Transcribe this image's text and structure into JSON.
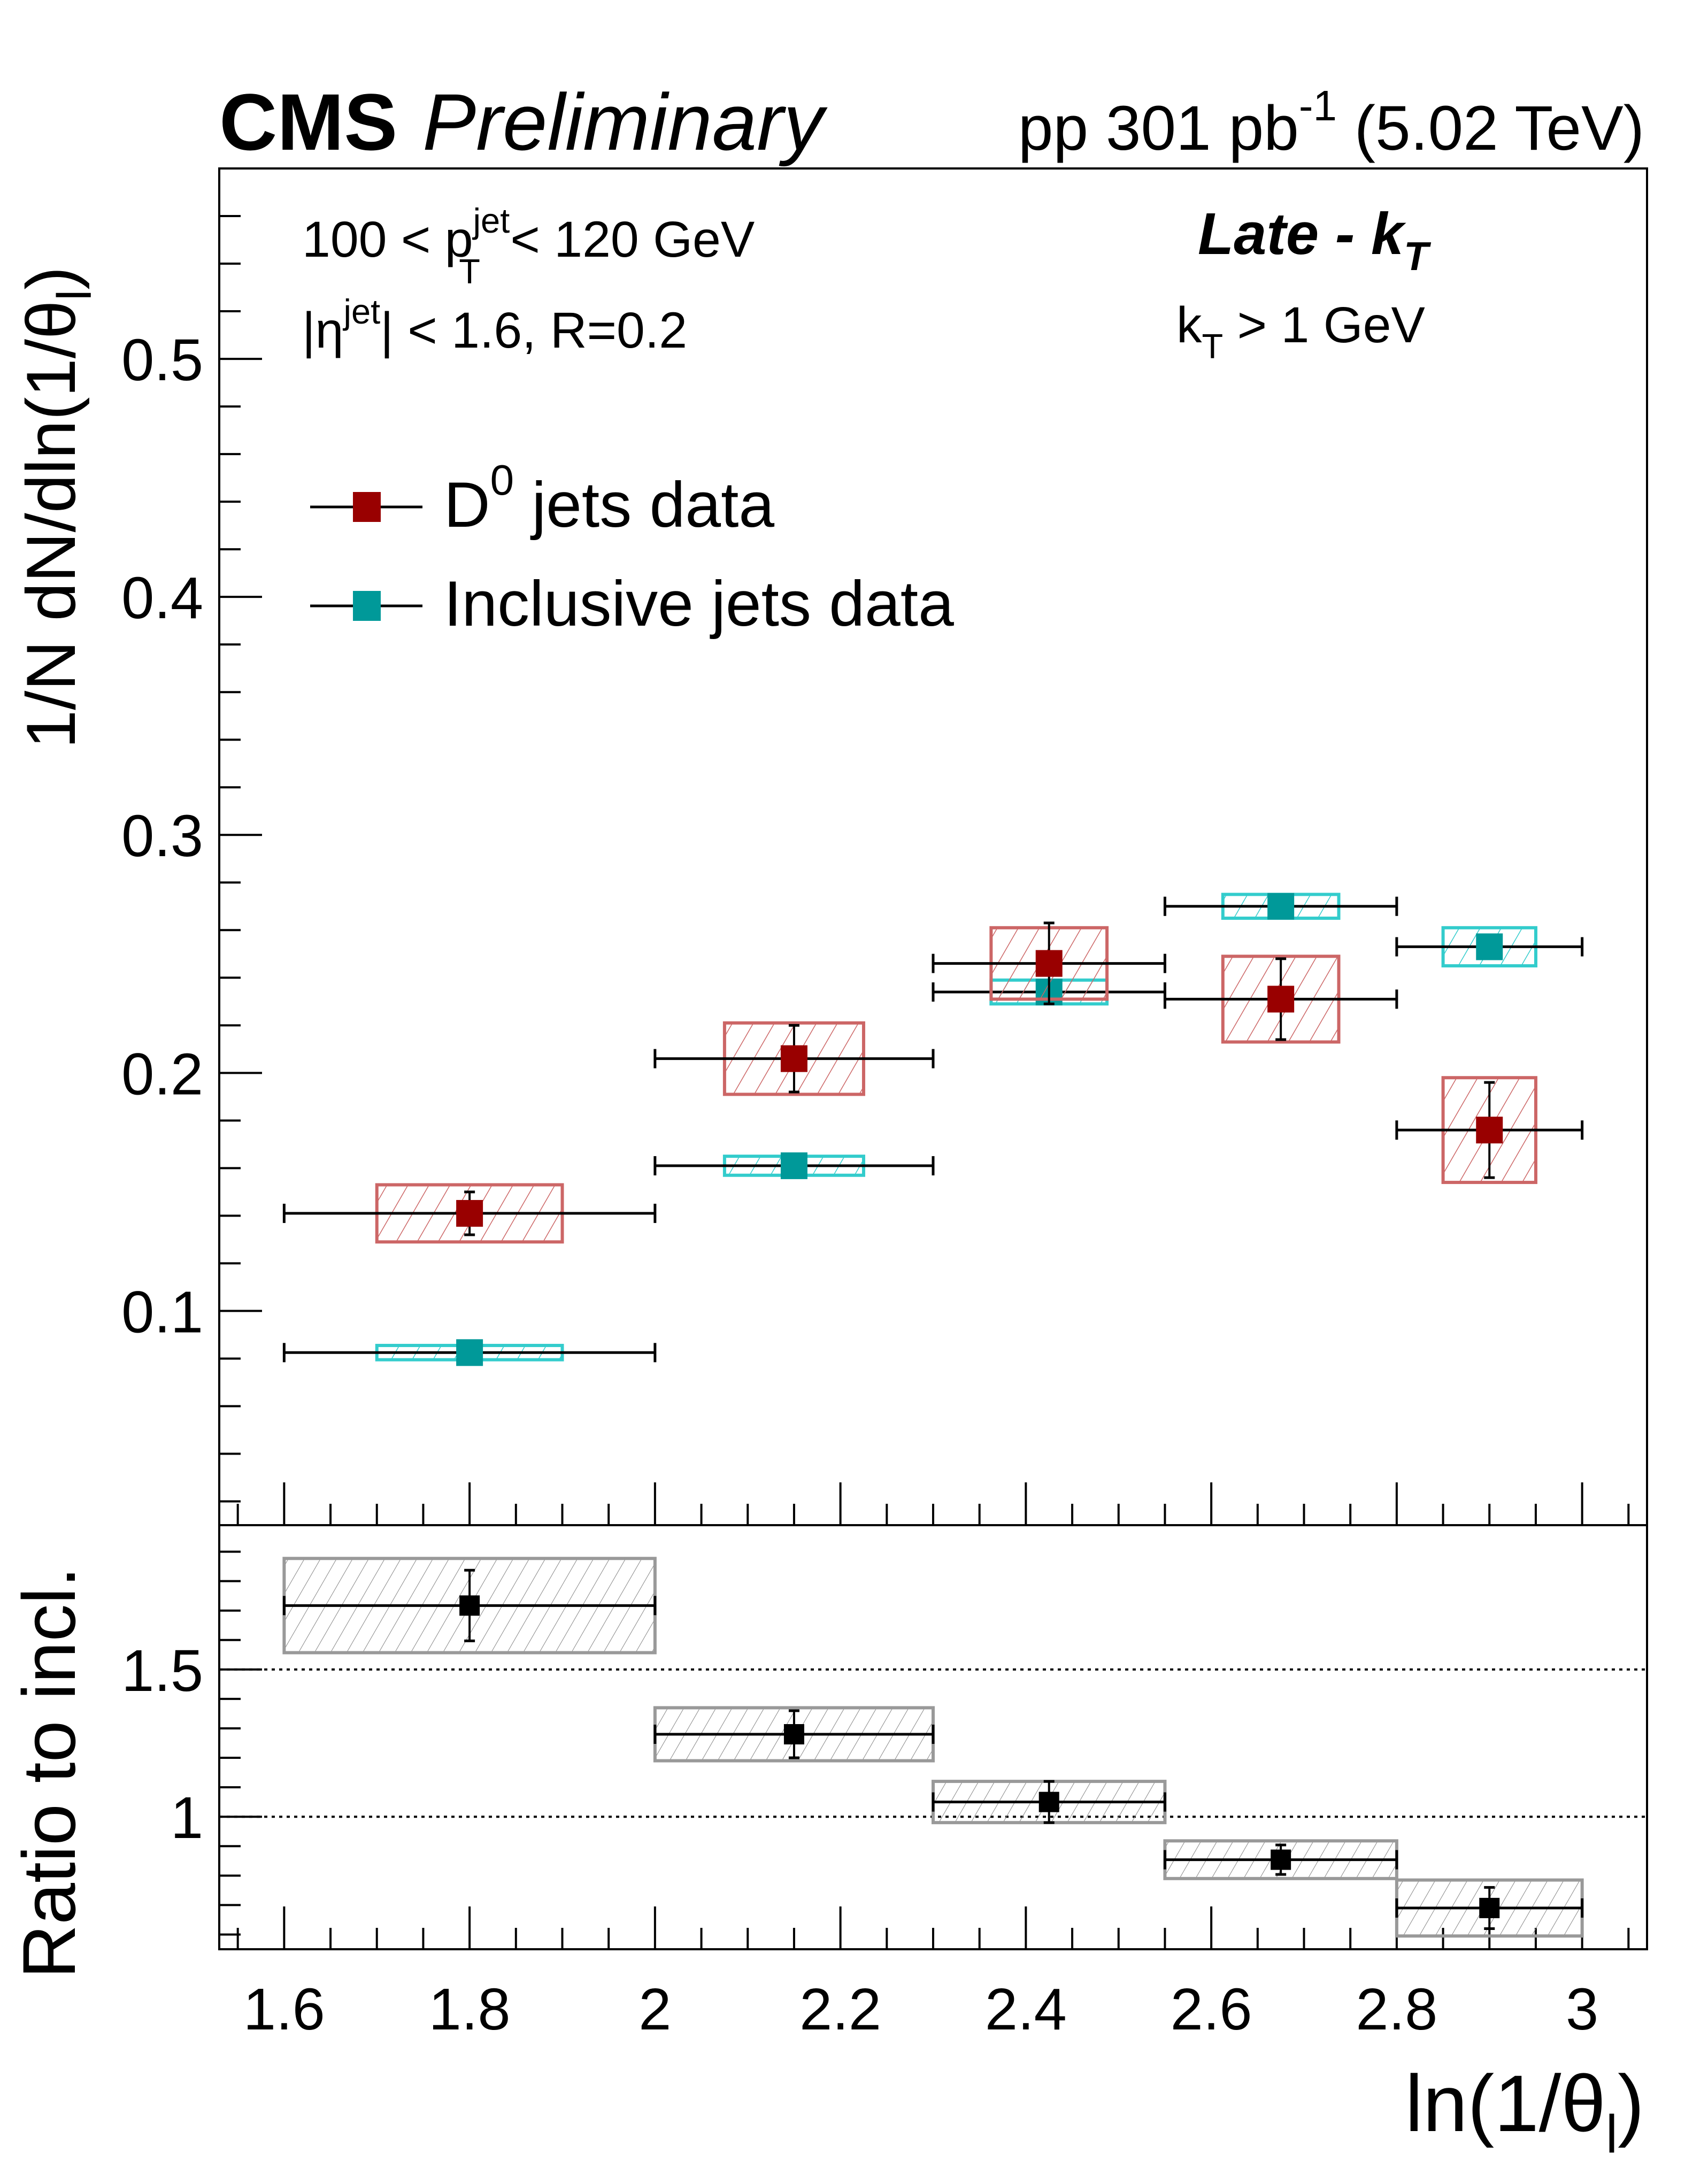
{
  "header": {
    "experiment": "CMS",
    "status": "Preliminary",
    "lumi_prefix": "pp 301 pb",
    "lumi_sup": "-1",
    "lumi_suffix": " (5.02 TeV)"
  },
  "annotations": {
    "pt_range_left": "100 < p",
    "pt_sup": "jet",
    "pt_sub": "T",
    "pt_range_right": " < 120 GeV",
    "eta_left": "|η",
    "eta_sup": "jet",
    "eta_right": "| < 1.6, R=0.2",
    "method_main": "Late - k",
    "method_sub": "T",
    "kt_left": "k",
    "kt_sub": "T",
    "kt_right": " > 1 GeV"
  },
  "legend": {
    "entries": [
      {
        "label_main": "D",
        "label_sup": "0",
        "label_rest": " jets data",
        "color": "#990000"
      },
      {
        "label_main": "Inclusive jets data",
        "label_sup": "",
        "label_rest": "",
        "color": "#009999"
      }
    ]
  },
  "chart_data": [
    {
      "type": "scatter",
      "title": "",
      "xlabel": "ln(1/θ_l)",
      "ylabel": "1/N dN/dln(1/θ_l)",
      "ylabel_main": "1/N dN/dln(1/θ",
      "ylabel_sub": "l",
      "ylabel_end": ")",
      "xlim": [
        1.53,
        3.07
      ],
      "ylim": [
        0.01,
        0.58
      ],
      "yticks": [
        0.1,
        0.2,
        0.3,
        0.4,
        0.5
      ],
      "ytick_labels": [
        "0.1",
        "0.2",
        "0.3",
        "0.4",
        "0.5"
      ],
      "grid": false,
      "legend_position": "top-left",
      "bins": [
        [
          1.6,
          2.0
        ],
        [
          2.0,
          2.3
        ],
        [
          2.3,
          2.55
        ],
        [
          2.55,
          2.8
        ],
        [
          2.8,
          3.0
        ]
      ],
      "series": [
        {
          "name": "D0 jets data",
          "color": "#990000",
          "sys_color": "#cc6666",
          "x": [
            1.8,
            2.15,
            2.425,
            2.675,
            2.9
          ],
          "y": [
            0.141,
            0.206,
            0.246,
            0.231,
            0.176
          ],
          "stat_err": [
            0.009,
            0.014,
            0.017,
            0.017,
            0.02
          ],
          "sys_err": [
            0.012,
            0.015,
            0.015,
            0.018,
            0.022
          ]
        },
        {
          "name": "Inclusive jets data",
          "color": "#009999",
          "sys_color": "#33cccc",
          "x": [
            1.8,
            2.15,
            2.425,
            2.675,
            2.9
          ],
          "y": [
            0.0825,
            0.161,
            0.234,
            0.27,
            0.253
          ],
          "stat_err": [
            0.001,
            0.001,
            0.001,
            0.001,
            0.001
          ],
          "sys_err": [
            0.003,
            0.004,
            0.005,
            0.005,
            0.008
          ]
        }
      ]
    },
    {
      "type": "scatter",
      "title": "",
      "xlabel": "ln(1/θ_l)",
      "ylabel": "Ratio to incl.",
      "xlim": [
        1.53,
        3.07
      ],
      "ylim": [
        0.55,
        1.99
      ],
      "yticks": [
        1.0,
        1.5
      ],
      "ytick_labels": [
        "1",
        "1.5"
      ],
      "xticks": [
        1.6,
        1.8,
        2.0,
        2.2,
        2.4,
        2.6,
        2.8,
        3.0
      ],
      "xtick_labels": [
        "1.6",
        "1.8",
        "2",
        "2.2",
        "2.4",
        "2.6",
        "2.8",
        "3"
      ],
      "reference_lines": [
        1.0,
        1.5
      ],
      "grid": false,
      "bins": [
        [
          1.6,
          2.0
        ],
        [
          2.0,
          2.3
        ],
        [
          2.3,
          2.55
        ],
        [
          2.55,
          2.8
        ],
        [
          2.8,
          3.0
        ]
      ],
      "series": [
        {
          "name": "D0 / inclusive ratio",
          "color": "#000000",
          "sys_color": "#999999",
          "x": [
            1.8,
            2.15,
            2.425,
            2.675,
            2.9
          ],
          "y": [
            1.717,
            1.28,
            1.05,
            0.854,
            0.69
          ],
          "stat_err": [
            0.12,
            0.08,
            0.07,
            0.05,
            0.07
          ],
          "sys_err": [
            0.16,
            0.09,
            0.07,
            0.064,
            0.095
          ]
        }
      ]
    }
  ],
  "axis_labels": {
    "x_main": "ln(1/θ",
    "x_sub": "l",
    "x_end": ")",
    "ratio_y": "Ratio to incl."
  }
}
